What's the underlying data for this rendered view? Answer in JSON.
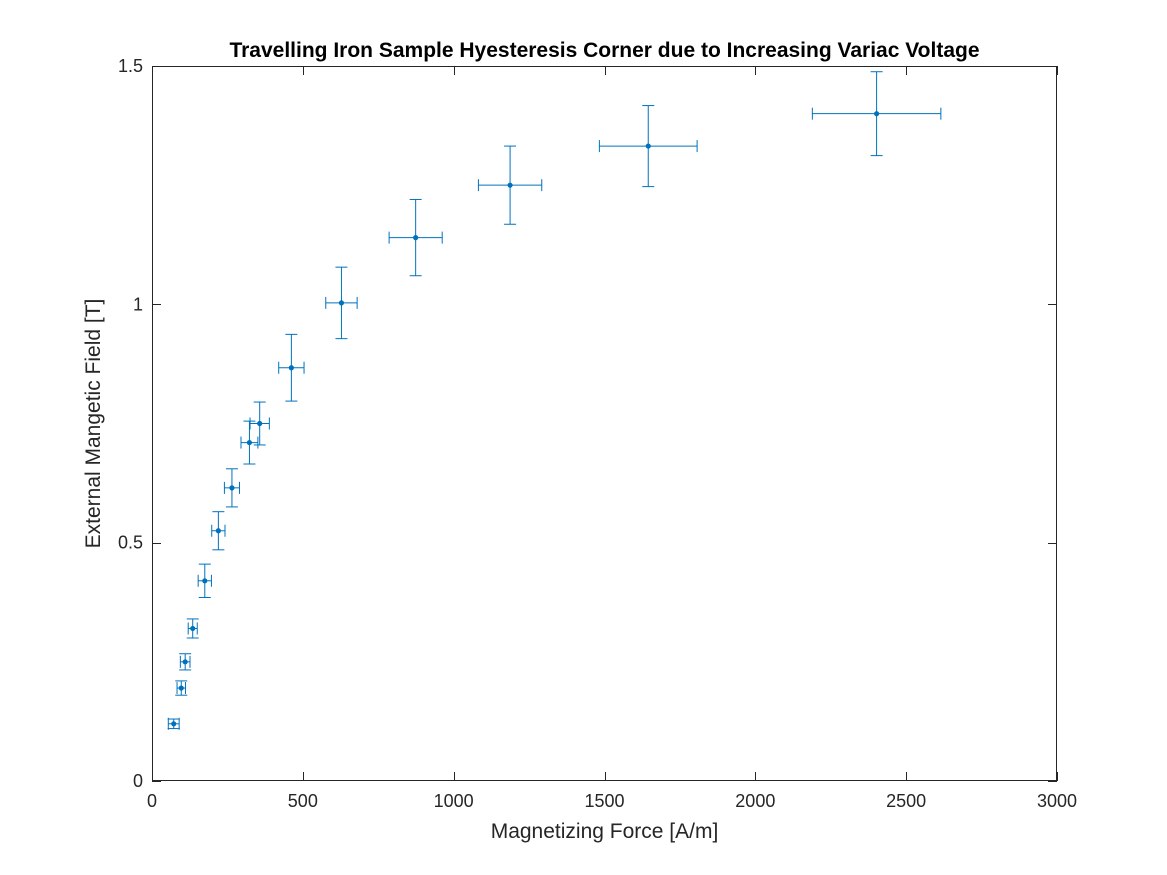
{
  "chart_data": {
    "type": "scatter",
    "title": "Travelling Iron Sample Hyesteresis Corner due to Increasing Variac Voltage",
    "xlabel": "Magnetizing Force [A/m]",
    "ylabel": "External Mangetic Field [T]",
    "xlim": [
      0,
      3000
    ],
    "ylim": [
      0,
      1.5
    ],
    "xticks": [
      0,
      500,
      1000,
      1500,
      2000,
      2500,
      3000
    ],
    "xtick_labels": [
      "0",
      "500",
      "1000",
      "1500",
      "2000",
      "2500",
      "3000"
    ],
    "yticks": [
      0,
      0.5,
      1,
      1.5
    ],
    "ytick_labels": [
      "0",
      "0.5",
      "1",
      "1.5"
    ],
    "grid": false,
    "box": true,
    "series_color": "#0072BD",
    "points": [
      {
        "x": 72,
        "y": 0.12,
        "xerr": 18,
        "yerr": 0.01
      },
      {
        "x": 97,
        "y": 0.195,
        "xerr": 14,
        "yerr": 0.015
      },
      {
        "x": 110,
        "y": 0.25,
        "xerr": 16,
        "yerr": 0.017
      },
      {
        "x": 135,
        "y": 0.32,
        "xerr": 15,
        "yerr": 0.02
      },
      {
        "x": 175,
        "y": 0.42,
        "xerr": 22,
        "yerr": 0.035
      },
      {
        "x": 220,
        "y": 0.525,
        "xerr": 22,
        "yerr": 0.04
      },
      {
        "x": 265,
        "y": 0.615,
        "xerr": 25,
        "yerr": 0.04
      },
      {
        "x": 323,
        "y": 0.71,
        "xerr": 28,
        "yerr": 0.045
      },
      {
        "x": 357,
        "y": 0.75,
        "xerr": 32,
        "yerr": 0.045
      },
      {
        "x": 462,
        "y": 0.867,
        "xerr": 42,
        "yerr": 0.07
      },
      {
        "x": 628,
        "y": 1.003,
        "xerr": 52,
        "yerr": 0.075
      },
      {
        "x": 874,
        "y": 1.14,
        "xerr": 88,
        "yerr": 0.08
      },
      {
        "x": 1187,
        "y": 1.25,
        "xerr": 105,
        "yerr": 0.082
      },
      {
        "x": 1645,
        "y": 1.332,
        "xerr": 162,
        "yerr": 0.085
      },
      {
        "x": 2402,
        "y": 1.4,
        "xerr": 213,
        "yerr": 0.088
      }
    ]
  }
}
